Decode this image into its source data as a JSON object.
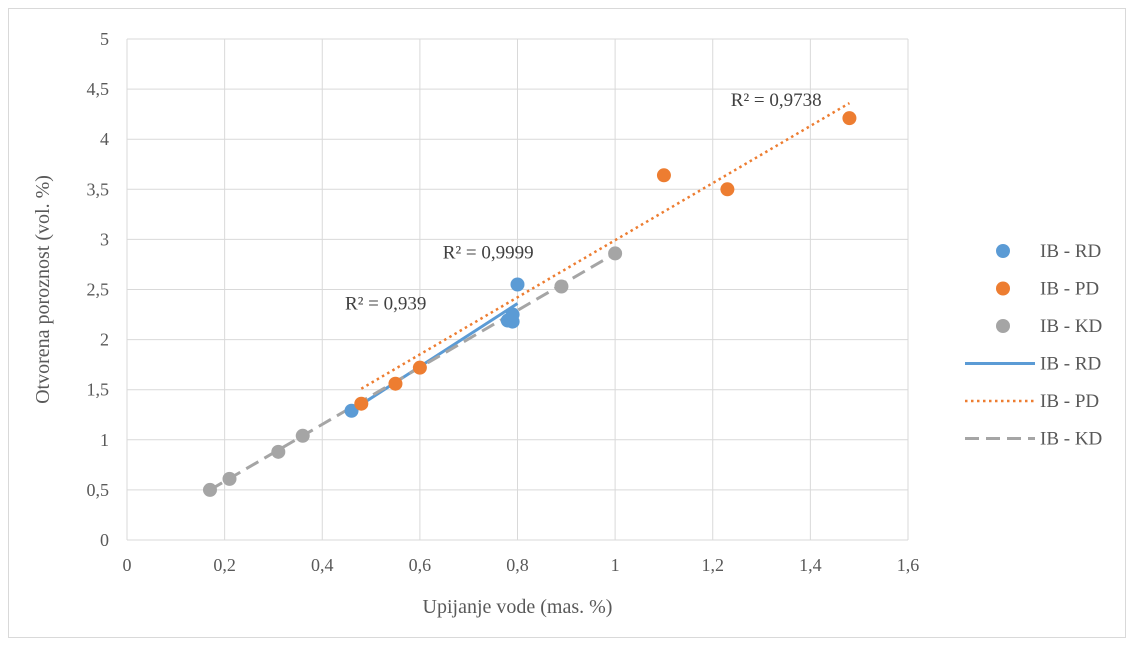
{
  "chart_data": {
    "type": "scatter",
    "xlabel": "Upijanje vode (mas. %)",
    "ylabel": "Otvorena poroznost (vol. %)",
    "xlim": [
      0,
      1.6
    ],
    "ylim": [
      0,
      5
    ],
    "x_ticks": [
      "0",
      "0,2",
      "0,4",
      "0,6",
      "0,8",
      "1",
      "1,2",
      "1,4",
      "1,6"
    ],
    "y_ticks": [
      "0",
      "0,5",
      "1",
      "1,5",
      "2",
      "2,5",
      "3",
      "3,5",
      "4",
      "4,5",
      "5"
    ],
    "grid": true,
    "legend_position": "right",
    "series": [
      {
        "name": "IB - RD",
        "color": "#5b9bd5",
        "points": [
          [
            0.46,
            1.29
          ],
          [
            0.78,
            2.19
          ],
          [
            0.79,
            2.18
          ],
          [
            0.79,
            2.25
          ],
          [
            0.8,
            2.55
          ]
        ]
      },
      {
        "name": "IB - PD",
        "color": "#ed7d31",
        "points": [
          [
            0.48,
            1.36
          ],
          [
            0.55,
            1.56
          ],
          [
            0.6,
            1.72
          ],
          [
            1.1,
            3.64
          ],
          [
            1.23,
            3.5
          ],
          [
            1.48,
            4.21
          ]
        ]
      },
      {
        "name": "IB - KD",
        "color": "#a5a5a5",
        "points": [
          [
            0.17,
            0.5
          ],
          [
            0.21,
            0.61
          ],
          [
            0.31,
            0.88
          ],
          [
            0.36,
            1.04
          ],
          [
            0.89,
            2.53
          ],
          [
            1.0,
            2.86
          ]
        ]
      }
    ],
    "trendlines": [
      {
        "name": "IB - RD",
        "color": "#5b9bd5",
        "style": "solid",
        "from": [
          0.46,
          1.29
        ],
        "to": [
          0.8,
          2.36
        ],
        "r2_label": "R² = 0,939",
        "label_at": [
          0.53,
          2.3
        ]
      },
      {
        "name": "IB - PD",
        "color": "#ed7d31",
        "style": "dotted",
        "from": [
          0.48,
          1.51
        ],
        "to": [
          1.48,
          4.36
        ],
        "r2_label": "R² = 0,9738",
        "label_at": [
          1.33,
          4.33
        ]
      },
      {
        "name": "IB - KD",
        "color": "#a5a5a5",
        "style": "dashed",
        "from": [
          0.17,
          0.5
        ],
        "to": [
          1.0,
          2.86
        ],
        "r2_label": "R² = 0,9999",
        "label_at": [
          0.74,
          2.81
        ]
      }
    ],
    "legend": [
      {
        "label": "IB - RD",
        "kind": "marker",
        "color": "#5b9bd5"
      },
      {
        "label": "IB - PD",
        "kind": "marker",
        "color": "#ed7d31"
      },
      {
        "label": "IB - KD",
        "kind": "marker",
        "color": "#a5a5a5"
      },
      {
        "label": "IB - RD",
        "kind": "solid",
        "color": "#5b9bd5"
      },
      {
        "label": "IB - PD",
        "kind": "dotted",
        "color": "#ed7d31"
      },
      {
        "label": "IB - KD",
        "kind": "dashed",
        "color": "#a5a5a5"
      }
    ]
  }
}
